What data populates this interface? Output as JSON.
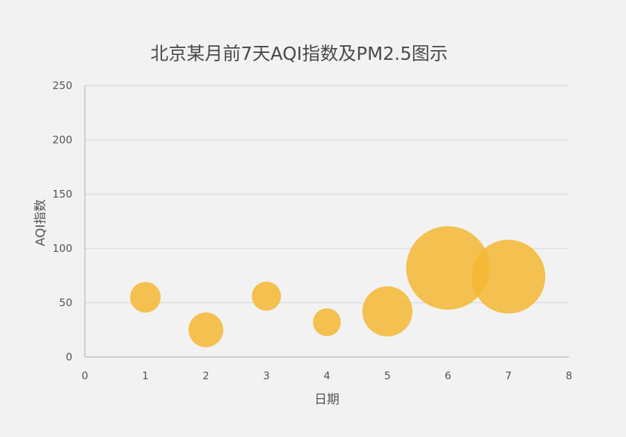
{
  "chart_data": {
    "type": "scatter",
    "subtype": "bubble",
    "title": "北京某月前7天AQI指数及PM2.5图示",
    "xlabel": "日期",
    "ylabel": "AQI指数",
    "xlim": [
      0,
      8
    ],
    "ylim": [
      0,
      250
    ],
    "x_ticks": [
      0,
      1,
      2,
      3,
      4,
      5,
      6,
      7,
      8
    ],
    "y_ticks": [
      0,
      50,
      100,
      150,
      200,
      250
    ],
    "grid": true,
    "legend": "none",
    "series": [
      {
        "color": "#f5b733",
        "points": [
          {
            "x": 1,
            "y": 55,
            "size": 22
          },
          {
            "x": 2,
            "y": 25,
            "size": 25
          },
          {
            "x": 3,
            "y": 56,
            "size": 21
          },
          {
            "x": 4,
            "y": 32,
            "size": 20
          },
          {
            "x": 5,
            "y": 42,
            "size": 36
          },
          {
            "x": 6,
            "y": 82,
            "size": 60
          },
          {
            "x": 7,
            "y": 74,
            "size": 53
          }
        ]
      }
    ]
  }
}
